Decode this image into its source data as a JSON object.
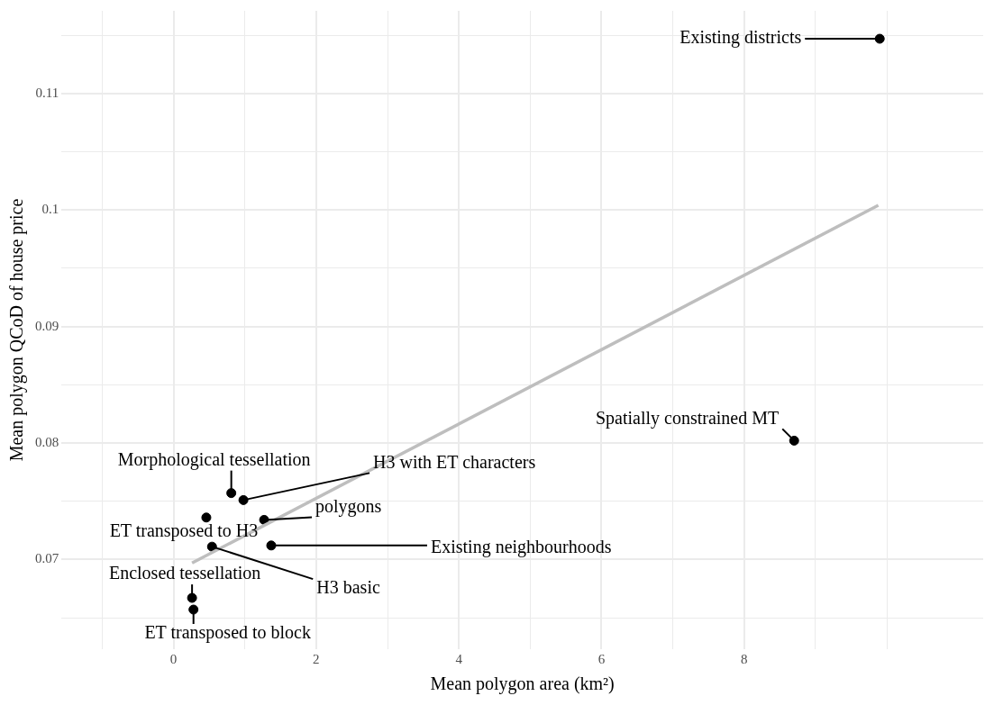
{
  "chart_data": {
    "type": "scatter",
    "xlabel": "Mean polygon area (km²)",
    "ylabel": "Mean polygon QCoD of house price",
    "xlim": [
      -1.57,
      11.35
    ],
    "ylim": [
      0.0623,
      0.1171
    ],
    "xticks": [
      {
        "value": -1,
        "label": null
      },
      0,
      {
        "value": 1,
        "label": null
      },
      2,
      {
        "value": 3,
        "label": null
      },
      4,
      {
        "value": 5,
        "label": null
      },
      6,
      {
        "value": 7,
        "label": null
      },
      8,
      {
        "value": 9,
        "label": null
      },
      {
        "value": 10,
        "label": null
      }
    ],
    "yticks": [
      {
        "value": 0.065,
        "label": null
      },
      0.07,
      {
        "value": 0.075,
        "label": null
      },
      0.08,
      {
        "value": 0.085,
        "label": null
      },
      0.09,
      {
        "value": 0.095,
        "label": null
      },
      0.1,
      {
        "value": 0.105,
        "label": null
      },
      0.11,
      {
        "value": 0.115,
        "label": null
      }
    ],
    "grid": true,
    "legend": false,
    "marker": "circle",
    "series": [
      {
        "type": "line",
        "color": "#bebebe",
        "x": [
          0.26,
          9.88
        ],
        "values": [
          0.0697,
          0.1004
        ],
        "marker": "none"
      },
      {
        "type": "scatter",
        "color": "#000000",
        "x": [
          9.9,
          8.7,
          0.81,
          0.98,
          1.27,
          0.46,
          0.54,
          1.37,
          0.26,
          0.28
        ],
        "values": [
          0.1147,
          0.0802,
          0.0757,
          0.0751,
          0.0734,
          0.0736,
          0.0711,
          0.0712,
          0.0667,
          0.0657
        ],
        "value_labels": [
          "Existing districts",
          "Spatially constrained MT",
          "Morphological tessellation",
          "H3 with ET characters",
          "polygons",
          "ET transposed to H3",
          "H3 basic",
          "Existing neighbourhoods",
          "Enclosed tessellation",
          "ET transposed to block"
        ]
      }
    ]
  }
}
